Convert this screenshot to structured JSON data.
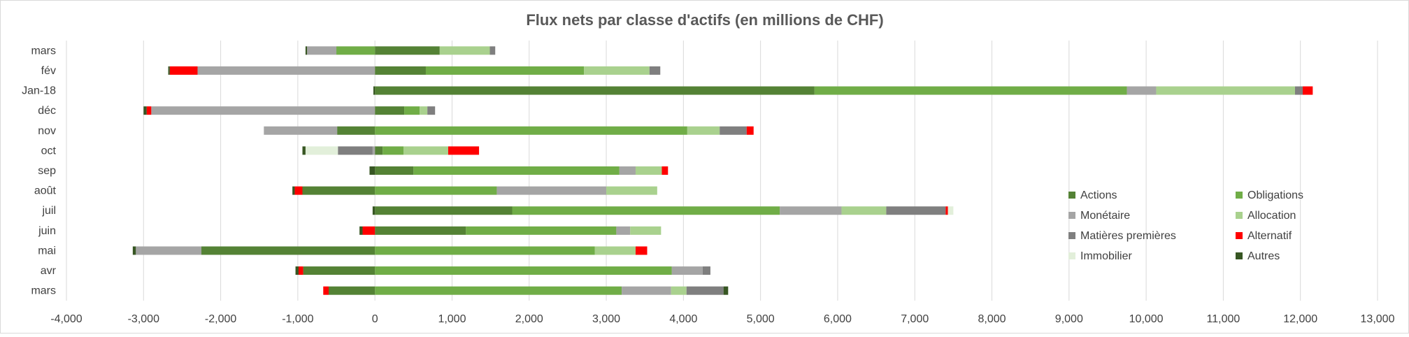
{
  "chart_data": {
    "type": "bar",
    "orientation": "horizontal",
    "stacked": true,
    "title": "Flux nets par classe d'actifs (en millions de CHF)",
    "xlabel": "",
    "ylabel": "",
    "xlim": [
      -4000,
      13000
    ],
    "x_ticks": [
      -4000,
      -3000,
      -2000,
      -1000,
      0,
      1000,
      2000,
      3000,
      4000,
      5000,
      6000,
      7000,
      8000,
      9000,
      10000,
      11000,
      12000,
      13000
    ],
    "x_tick_labels": [
      "-4,000",
      "-3,000",
      "-2,000",
      "-1,000",
      "0",
      "1,000",
      "2,000",
      "3,000",
      "4,000",
      "5,000",
      "6,000",
      "7,000",
      "8,000",
      "9,000",
      "10,000",
      "11,000",
      "12,000",
      "13,000"
    ],
    "grid": "vertical",
    "legend_position": "right-inside",
    "categories": [
      "mars",
      "fév",
      "Jan-18",
      "déc",
      "nov",
      "oct",
      "sep",
      "août",
      "juil",
      "juin",
      "mai",
      "avr",
      "mars"
    ],
    "series": [
      {
        "name": "Actions",
        "color": "#548235",
        "values": [
          840,
          660,
          5700,
          380,
          -490,
          100,
          500,
          -940,
          1780,
          1180,
          -2250,
          -930,
          -600
        ]
      },
      {
        "name": "Obligations",
        "color": "#70AD47",
        "values": [
          -500,
          2050,
          4050,
          200,
          4050,
          270,
          2670,
          1580,
          3470,
          1950,
          2850,
          3850,
          3200
        ]
      },
      {
        "name": "Monétaire",
        "color": "#A5A5A5",
        "values": [
          -380,
          -2300,
          380,
          -2900,
          -950,
          -30,
          210,
          1420,
          800,
          180,
          -850,
          400,
          640
        ]
      },
      {
        "name": "Allocation",
        "color": "#A9D18E",
        "values": [
          650,
          850,
          1800,
          100,
          420,
          580,
          340,
          660,
          580,
          400,
          530,
          0,
          200
        ]
      },
      {
        "name": "Matières premières",
        "color": "#7F7F7F",
        "values": [
          70,
          140,
          100,
          100,
          350,
          -450,
          0,
          0,
          770,
          0,
          0,
          100,
          480
        ]
      },
      {
        "name": "Alternatif",
        "color": "#FF0000",
        "values": [
          0,
          -360,
          130,
          -60,
          90,
          400,
          80,
          -100,
          30,
          -160,
          150,
          -60,
          -70
        ]
      },
      {
        "name": "Immobilier",
        "color": "#E2EFDA",
        "values": [
          0,
          0,
          0,
          0,
          0,
          -420,
          0,
          0,
          70,
          0,
          0,
          0,
          0
        ]
      },
      {
        "name": "Autres",
        "color": "#375623",
        "values": [
          -20,
          -20,
          -20,
          -40,
          0,
          -40,
          -70,
          -30,
          -30,
          -40,
          -40,
          -40,
          60
        ]
      }
    ]
  }
}
